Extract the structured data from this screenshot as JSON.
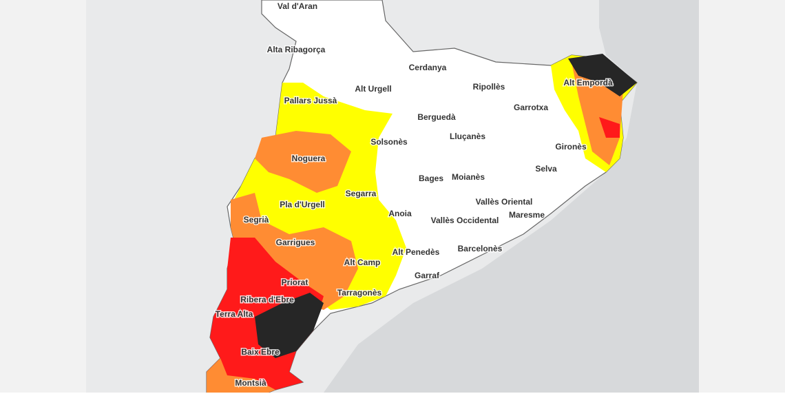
{
  "map": {
    "labels": [
      "Val d'Aran",
      "Alta Ribagorça",
      "Cerdanya",
      "Alt Urgell",
      "Ripollès",
      "Alt Empordà",
      "Pallars Jussà",
      "Garrotxa",
      "Berguedà",
      "Solsonès",
      "Lluçanès",
      "Gironès",
      "Noguera",
      "Selva",
      "Bages",
      "Moianès",
      "Segarra",
      "Vallès Oriental",
      "Pla d'Urgell",
      "Anoia",
      "Maresme",
      "Segrià",
      "Vallès Occidental",
      "Garrigues",
      "Barcelonès",
      "Alt Camp",
      "Alt Penedès",
      "Garraf",
      "Priorat",
      "Tarragonès",
      "Ribera d'Ebre",
      "Terra Alta",
      "Baix Ebre",
      "Montsià"
    ]
  }
}
